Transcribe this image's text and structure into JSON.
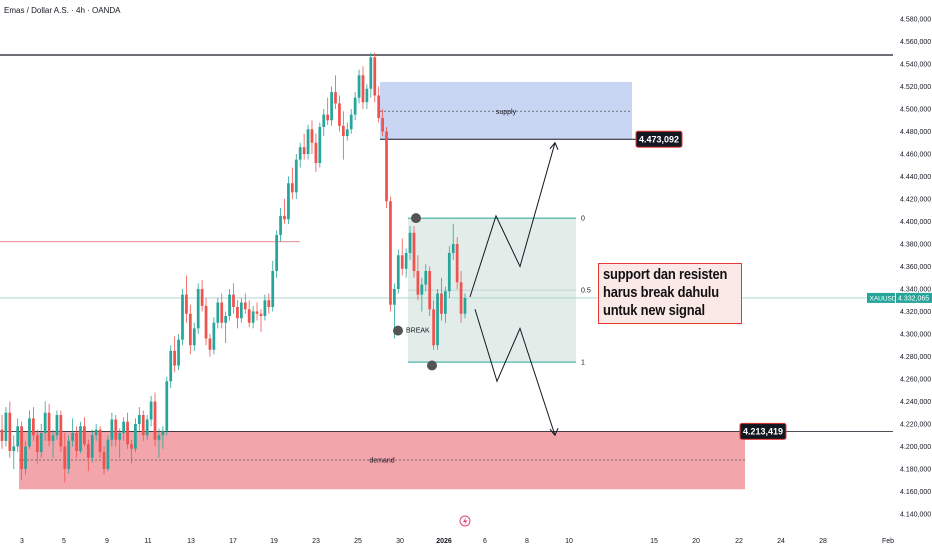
{
  "header": {
    "title": "Emas / Dollar A.S. · 4h · OANDA"
  },
  "chart_data": {
    "type": "candlestick",
    "title": "Emas / Dollar A.S. · 4h · OANDA",
    "symbol": "XAUUSD",
    "current_price": "4.332,065",
    "y_ticks": [
      "4.580,000",
      "4.560,000",
      "4.540,000",
      "4.520,000",
      "4.500,000",
      "4.480,000",
      "4.460,000",
      "4.440,000",
      "4.420,000",
      "4.400,000",
      "4.380,000",
      "4.360,000",
      "4.340,000",
      "4.320,000",
      "4.300,000",
      "4.280,000",
      "4.260,000",
      "4.240,000",
      "4.220,000",
      "4.200,000",
      "4.180,000",
      "4.160,000",
      "4.140,000"
    ],
    "ylim": [
      4135,
      4590
    ],
    "x_ticks": [
      "3",
      "5",
      "9",
      "11",
      "13",
      "17",
      "19",
      "23",
      "25",
      "30",
      "2026",
      "6",
      "8",
      "10",
      "15",
      "20",
      "22",
      "24",
      "28",
      "Feb"
    ],
    "annotations": {
      "supply_label": "supply",
      "demand_label": "demand",
      "break_label": "BREAK",
      "resistance_price": "4.473,092",
      "support_price": "4.213,419",
      "fib_top": "0",
      "fib_mid": "0.5",
      "fib_bottom": "1",
      "note_lines": [
        "support dan resisten",
        "harus break dahulu",
        "untuk new signal"
      ]
    },
    "levels": {
      "supply_top": 4524,
      "supply_bottom": 4473.092,
      "supply_mid": 4498,
      "demand_top": 4213.419,
      "demand_bottom": 4162,
      "demand_mid": 4188,
      "range_top": 4403,
      "range_bottom": 4275,
      "range_mid": 4339,
      "resistance_line": 4548,
      "red_line": 4382,
      "current": 4332.065
    },
    "candles": [
      [
        4215,
        4228,
        4198,
        4205
      ],
      [
        4205,
        4235,
        4200,
        4230
      ],
      [
        4230,
        4240,
        4190,
        4196
      ],
      [
        4196,
        4210,
        4180,
        4200
      ],
      [
        4200,
        4225,
        4195,
        4218
      ],
      [
        4218,
        4222,
        4170,
        4180
      ],
      [
        4180,
        4205,
        4175,
        4200
      ],
      [
        4200,
        4232,
        4198,
        4225
      ],
      [
        4225,
        4235,
        4205,
        4210
      ],
      [
        4210,
        4215,
        4185,
        4195
      ],
      [
        4195,
        4220,
        4190,
        4212
      ],
      [
        4212,
        4240,
        4205,
        4230
      ],
      [
        4230,
        4238,
        4200,
        4205
      ],
      [
        4205,
        4215,
        4190,
        4210
      ],
      [
        4210,
        4232,
        4206,
        4228
      ],
      [
        4228,
        4232,
        4195,
        4200
      ],
      [
        4200,
        4212,
        4168,
        4180
      ],
      [
        4180,
        4210,
        4176,
        4205
      ],
      [
        4205,
        4225,
        4200,
        4212
      ],
      [
        4212,
        4218,
        4190,
        4196
      ],
      [
        4196,
        4222,
        4194,
        4218
      ],
      [
        4218,
        4226,
        4200,
        4202
      ],
      [
        4202,
        4206,
        4178,
        4190
      ],
      [
        4190,
        4215,
        4186,
        4210
      ],
      [
        4210,
        4220,
        4205,
        4215
      ],
      [
        4215,
        4218,
        4190,
        4195
      ],
      [
        4195,
        4200,
        4175,
        4180
      ],
      [
        4180,
        4210,
        4178,
        4206
      ],
      [
        4206,
        4230,
        4200,
        4224
      ],
      [
        4224,
        4228,
        4200,
        4206
      ],
      [
        4206,
        4216,
        4190,
        4212
      ],
      [
        4212,
        4226,
        4205,
        4222
      ],
      [
        4222,
        4230,
        4198,
        4202
      ],
      [
        4202,
        4206,
        4185,
        4198
      ],
      [
        4198,
        4225,
        4195,
        4220
      ],
      [
        4220,
        4235,
        4214,
        4228
      ],
      [
        4228,
        4232,
        4205,
        4210
      ],
      [
        4210,
        4228,
        4206,
        4224
      ],
      [
        4224,
        4245,
        4218,
        4240
      ],
      [
        4240,
        4248,
        4200,
        4206
      ],
      [
        4206,
        4216,
        4190,
        4210
      ],
      [
        4210,
        4218,
        4198,
        4214
      ],
      [
        4214,
        4262,
        4210,
        4258
      ],
      [
        4258,
        4290,
        4252,
        4285
      ],
      [
        4285,
        4298,
        4266,
        4272
      ],
      [
        4272,
        4300,
        4268,
        4295
      ],
      [
        4295,
        4340,
        4290,
        4335
      ],
      [
        4335,
        4352,
        4310,
        4318
      ],
      [
        4318,
        4326,
        4282,
        4290
      ],
      [
        4290,
        4310,
        4285,
        4305
      ],
      [
        4305,
        4345,
        4300,
        4340
      ],
      [
        4340,
        4348,
        4320,
        4325
      ],
      [
        4325,
        4332,
        4290,
        4296
      ],
      [
        4296,
        4300,
        4280,
        4286
      ],
      [
        4286,
        4315,
        4282,
        4310
      ],
      [
        4310,
        4332,
        4305,
        4328
      ],
      [
        4328,
        4336,
        4305,
        4310
      ],
      [
        4310,
        4320,
        4292,
        4316
      ],
      [
        4316,
        4340,
        4312,
        4335
      ],
      [
        4335,
        4345,
        4318,
        4324
      ],
      [
        4324,
        4330,
        4305,
        4314
      ],
      [
        4314,
        4332,
        4310,
        4328
      ],
      [
        4328,
        4336,
        4318,
        4322
      ],
      [
        4322,
        4330,
        4306,
        4310
      ],
      [
        4310,
        4325,
        4305,
        4320
      ],
      [
        4320,
        4328,
        4312,
        4318
      ],
      [
        4318,
        4322,
        4302,
        4316
      ],
      [
        4316,
        4335,
        4312,
        4330
      ],
      [
        4330,
        4336,
        4318,
        4324
      ],
      [
        4324,
        4365,
        4320,
        4356
      ],
      [
        4356,
        4392,
        4350,
        4388
      ],
      [
        4388,
        4412,
        4382,
        4405
      ],
      [
        4405,
        4420,
        4398,
        4402
      ],
      [
        4402,
        4440,
        4398,
        4434
      ],
      [
        4434,
        4448,
        4420,
        4426
      ],
      [
        4426,
        4460,
        4420,
        4455
      ],
      [
        4455,
        4470,
        4448,
        4466
      ],
      [
        4466,
        4478,
        4455,
        4460
      ],
      [
        4460,
        4486,
        4455,
        4482
      ],
      [
        4482,
        4490,
        4460,
        4470
      ],
      [
        4470,
        4478,
        4444,
        4452
      ],
      [
        4452,
        4488,
        4448,
        4484
      ],
      [
        4484,
        4500,
        4476,
        4495
      ],
      [
        4495,
        4510,
        4486,
        4490
      ],
      [
        4490,
        4520,
        4485,
        4515
      ],
      [
        4515,
        4530,
        4500,
        4505
      ],
      [
        4505,
        4512,
        4480,
        4485
      ],
      [
        4485,
        4498,
        4455,
        4476
      ],
      [
        4476,
        4488,
        4472,
        4482
      ],
      [
        4482,
        4500,
        4478,
        4495
      ],
      [
        4495,
        4515,
        4490,
        4510
      ],
      [
        4510,
        4535,
        4505,
        4530
      ],
      [
        4530,
        4538,
        4500,
        4506
      ],
      [
        4506,
        4522,
        4500,
        4518
      ],
      [
        4518,
        4550,
        4510,
        4546
      ],
      [
        4546,
        4550,
        4506,
        4512
      ],
      [
        4512,
        4520,
        4488,
        4492
      ],
      [
        4492,
        4500,
        4476,
        4480
      ],
      [
        4480,
        4484,
        4412,
        4418
      ],
      [
        4418,
        4422,
        4320,
        4326
      ],
      [
        4326,
        4345,
        4296,
        4340
      ],
      [
        4340,
        4375,
        4336,
        4370
      ],
      [
        4370,
        4385,
        4352,
        4358
      ],
      [
        4358,
        4376,
        4350,
        4372
      ],
      [
        4372,
        4396,
        4366,
        4390
      ],
      [
        4390,
        4396,
        4350,
        4356
      ],
      [
        4356,
        4370,
        4330,
        4335
      ],
      [
        4335,
        4350,
        4320,
        4344
      ],
      [
        4344,
        4362,
        4338,
        4356
      ],
      [
        4356,
        4360,
        4316,
        4322
      ],
      [
        4322,
        4330,
        4286,
        4290
      ],
      [
        4290,
        4340,
        4286,
        4336
      ],
      [
        4336,
        4350,
        4312,
        4318
      ],
      [
        4318,
        4342,
        4310,
        4338
      ],
      [
        4338,
        4378,
        4332,
        4372
      ],
      [
        4372,
        4398,
        4366,
        4380
      ],
      [
        4380,
        4386,
        4340,
        4346
      ],
      [
        4346,
        4356,
        4310,
        4318
      ],
      [
        4318,
        4336,
        4314,
        4332
      ]
    ]
  }
}
